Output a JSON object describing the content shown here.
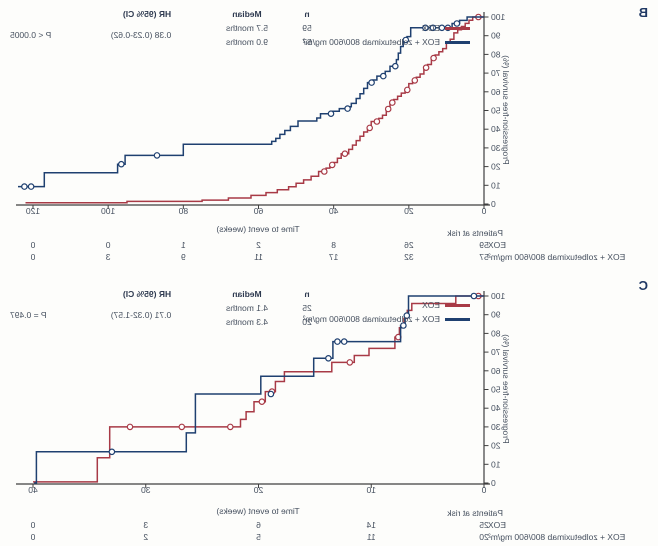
{
  "colors": {
    "eox": "#a83a46",
    "zolbetuximab": "#1f4070",
    "axis": "#3f3f3f",
    "text": "#46505f",
    "panel_letter": "#1f3864"
  },
  "panels": [
    {
      "label": "B",
      "y_axis_title": "Progression-free survival (%)",
      "x_axis_title": "Time to event (weeks)",
      "risk_title": "Patients at risk",
      "legend1": "EOX",
      "legend2": "EOX + zolbetuximab 800/600 mg/m²",
      "risk_row1_label": "EOX",
      "risk_row2_label": "EOX + zolbetuximab 800/600 mg/m²",
      "stats": {
        "n_header": "n",
        "median_header": "Median",
        "hr_header": "HR (95% CI)",
        "n1": "59",
        "median1": "5.7 months",
        "n2": "57",
        "median2": "9.0 months",
        "hr": "0.38 (0.23-0.62)",
        "p": "P < 0.0005"
      }
    },
    {
      "label": "C",
      "y_axis_title": "Progression-free survival (%)",
      "x_axis_title": "Time to event (weeks)",
      "risk_title": "Patients at risk",
      "legend1": "EOX",
      "legend2": "EOX + zolbetuximab 800/600 mg/m²",
      "risk_row1_label": "EOX",
      "risk_row2_label": "EOX + zolbetuximab 800/600 mg/m²",
      "stats": {
        "n_header": "n",
        "median_header": "Median",
        "hr_header": "HR (95% CI)",
        "n1": "25",
        "median1": "4.1 months",
        "n2": "20",
        "median2": "4.3 months",
        "hr": "0.71 (0.32-1.57)",
        "p": "P = 0.497"
      }
    }
  ],
  "chart_data": [
    {
      "type": "line",
      "subtype": "kaplan-meier-step",
      "title": "B",
      "xlabel": "Time to event (weeks)",
      "ylabel": "Progression-free survival (%)",
      "xlim": [
        0,
        124
      ],
      "ylim": [
        0,
        100
      ],
      "x_ticks": [
        0,
        20,
        40,
        60,
        80,
        100,
        120
      ],
      "y_ticks": [
        0,
        10,
        20,
        30,
        40,
        50,
        60,
        70,
        80,
        90,
        100
      ],
      "grid": false,
      "legend_position": "top-left-inside",
      "note": "image is horizontally mirrored",
      "series": [
        {
          "name": "EOX",
          "n": 59,
          "median": "5.7 months",
          "color": "#a83a46",
          "steps": [
            [
              0,
              100
            ],
            [
              3,
              98.3
            ],
            [
              4,
              96.6
            ],
            [
              5,
              94.9
            ],
            [
              6,
              93.2
            ],
            [
              7,
              91.5
            ],
            [
              8,
              88.1
            ],
            [
              9,
              86.4
            ],
            [
              10,
              83.1
            ],
            [
              11,
              81.4
            ],
            [
              12,
              79.7
            ],
            [
              13,
              78
            ],
            [
              14,
              74.6
            ],
            [
              15,
              72.9
            ],
            [
              16,
              69.5
            ],
            [
              17,
              67.8
            ],
            [
              18,
              66.1
            ],
            [
              19,
              64.4
            ],
            [
              20,
              61
            ],
            [
              21,
              59.3
            ],
            [
              22,
              57.6
            ],
            [
              23,
              55.9
            ],
            [
              24,
              54.2
            ],
            [
              25,
              50.8
            ],
            [
              26,
              47.5
            ],
            [
              27,
              45.8
            ],
            [
              28,
              44.1
            ],
            [
              30,
              40.7
            ],
            [
              31,
              38.5
            ],
            [
              32,
              36.2
            ],
            [
              33,
              33.9
            ],
            [
              34,
              31.5
            ],
            [
              35,
              29.2
            ],
            [
              36,
              26.9
            ],
            [
              38,
              24.5
            ],
            [
              39,
              22.2
            ],
            [
              40,
              20.9
            ],
            [
              41,
              19.2
            ],
            [
              42,
              17.4
            ],
            [
              44,
              14.8
            ],
            [
              46,
              12.9
            ],
            [
              48,
              11.1
            ],
            [
              50,
              9.2
            ],
            [
              52,
              7.6
            ],
            [
              55,
              6.1
            ],
            [
              58,
              4.6
            ],
            [
              62,
              3.2
            ],
            [
              68,
              2.1
            ],
            [
              75,
              1.4
            ],
            [
              95,
              0.7
            ],
            [
              122,
              0.7
            ]
          ],
          "censors": [
            [
              1.5,
              100
            ],
            [
              13.4,
              78
            ],
            [
              15.4,
              72.9
            ],
            [
              18.4,
              66.1
            ],
            [
              20.4,
              61
            ],
            [
              24.4,
              54.2
            ],
            [
              25.5,
              50.8
            ],
            [
              28.5,
              44.1
            ],
            [
              30.4,
              40.7
            ],
            [
              37,
              26.9
            ],
            [
              40.4,
              20.9
            ],
            [
              42.5,
              17.4
            ]
          ]
        },
        {
          "name": "EOX + zolbetuximab 800/600 mg/m²",
          "n": 57,
          "median": "9.0 months",
          "color": "#1f4070",
          "steps": [
            [
              0,
              100
            ],
            [
              4.5,
              98.2
            ],
            [
              6.5,
              96.5
            ],
            [
              8.5,
              94.2
            ],
            [
              19.5,
              89.5
            ],
            [
              20.5,
              87.7
            ],
            [
              21.5,
              84.2
            ],
            [
              22.2,
              80.7
            ],
            [
              22.8,
              77.2
            ],
            [
              23.3,
              73.7
            ],
            [
              25,
              70.9
            ],
            [
              26.3,
              68.4
            ],
            [
              28.5,
              66.3
            ],
            [
              29.6,
              64.9
            ],
            [
              31,
              61.8
            ],
            [
              32,
              59
            ],
            [
              33,
              56.4
            ],
            [
              34,
              53.8
            ],
            [
              35.3,
              52
            ],
            [
              36,
              51
            ],
            [
              38.5,
              49.6
            ],
            [
              40.3,
              48.3
            ],
            [
              43.5,
              46
            ],
            [
              44.5,
              44.4
            ],
            [
              49.5,
              41.5
            ],
            [
              51.5,
              39.3
            ],
            [
              53,
              37.2
            ],
            [
              54.3,
              35.1
            ],
            [
              55.4,
              33.5
            ],
            [
              56.5,
              31.9
            ],
            [
              80,
              26
            ],
            [
              95.5,
              21.3
            ],
            [
              97.5,
              16.7
            ],
            [
              117,
              9.3
            ],
            [
              124,
              9.3
            ]
          ],
          "censors": [
            [
              7.2,
              96.5
            ],
            [
              9.6,
              94.2
            ],
            [
              11.2,
              94.2
            ],
            [
              13.6,
              94.2
            ],
            [
              15.6,
              94.2
            ],
            [
              20.8,
              87.7
            ],
            [
              23.6,
              73.7
            ],
            [
              26.8,
              68.4
            ],
            [
              29.9,
              64.9
            ],
            [
              36.3,
              51
            ],
            [
              40.7,
              48.3
            ],
            [
              87,
              26
            ],
            [
              96.5,
              21.3
            ],
            [
              120.5,
              9.3
            ],
            [
              122.3,
              9.3
            ]
          ]
        }
      ],
      "hr": "0.38 (0.23-0.62)",
      "p_value": "P < 0.0005",
      "patients_at_risk": {
        "title": "Patients at risk",
        "times": [
          0,
          20,
          40,
          60,
          80,
          100,
          120
        ],
        "rows": [
          {
            "label": "EOX",
            "counts": [
              59,
              26,
              8,
              2,
              1,
              0,
              0
            ]
          },
          {
            "label": "EOX + zolbetuximab 800/600 mg/m²",
            "counts": [
              57,
              32,
              17,
              11,
              9,
              3,
              0
            ]
          }
        ]
      }
    },
    {
      "type": "line",
      "subtype": "kaplan-meier-step",
      "title": "C",
      "xlabel": "Time to event (weeks)",
      "ylabel": "Progression-free survival (%)",
      "xlim": [
        0,
        40
      ],
      "ylim": [
        0,
        100
      ],
      "x_ticks": [
        0,
        10,
        20,
        30,
        40
      ],
      "y_ticks": [
        0,
        10,
        20,
        30,
        40,
        50,
        60,
        70,
        80,
        90,
        100
      ],
      "grid": false,
      "legend_position": "top-left-inside",
      "note": "image is horizontally mirrored",
      "series": [
        {
          "name": "EOX",
          "n": 25,
          "median": "4.1 months",
          "color": "#a83a46",
          "steps": [
            [
              0,
              100
            ],
            [
              2.5,
              96
            ],
            [
              6.4,
              92.3
            ],
            [
              6.8,
              88
            ],
            [
              7.1,
              83
            ],
            [
              7.5,
              78
            ],
            [
              7.9,
              72
            ],
            [
              10.2,
              68.2
            ],
            [
              11.5,
              64.5
            ],
            [
              13.5,
              59.5
            ],
            [
              17.7,
              54.3
            ],
            [
              18.5,
              48.9
            ],
            [
              19.4,
              43.5
            ],
            [
              20.4,
              38.1
            ],
            [
              21.1,
              34
            ],
            [
              21.6,
              30
            ],
            [
              33.2,
              13.5
            ],
            [
              34.3,
              0.6
            ],
            [
              40,
              0.6
            ]
          ],
          "censors": [
            [
              0.5,
              100
            ],
            [
              7.6,
              78
            ],
            [
              11.9,
              64.5
            ],
            [
              18.8,
              48.9
            ],
            [
              19.7,
              43.5
            ],
            [
              22.5,
              30
            ],
            [
              26.8,
              30
            ],
            [
              31.4,
              30
            ]
          ]
        },
        {
          "name": "EOX + zolbetuximab 800/600 mg/m²",
          "n": 20,
          "median": "4.3 months",
          "color": "#1f4070",
          "steps": [
            [
              0,
              100
            ],
            [
              6.7,
              89.5
            ],
            [
              7,
              84.2
            ],
            [
              7.4,
              75.6
            ],
            [
              13.4,
              66.7
            ],
            [
              15.1,
              57.1
            ],
            [
              19.8,
              47.6
            ],
            [
              25.6,
              26.8
            ],
            [
              26.4,
              16.7
            ],
            [
              39.7,
              16.7
            ],
            [
              39.7,
              0
            ],
            [
              39.9,
              0
            ]
          ],
          "censors": [
            [
              0.9,
              100
            ],
            [
              6.85,
              89.5
            ],
            [
              7.15,
              84.2
            ],
            [
              12.4,
              75.6
            ],
            [
              13,
              75.6
            ],
            [
              13.8,
              66.7
            ],
            [
              18.9,
              47.6
            ],
            [
              33,
              16.7
            ]
          ]
        }
      ],
      "hr": "0.71 (0.32-1.57)",
      "p_value": "P = 0.497",
      "patients_at_risk": {
        "title": "Patients at risk",
        "times": [
          0,
          10,
          20,
          30,
          40
        ],
        "rows": [
          {
            "label": "EOX",
            "counts": [
              25,
              14,
              6,
              3,
              0
            ]
          },
          {
            "label": "EOX + zolbetuximab 800/600 mg/m²",
            "counts": [
              20,
              11,
              5,
              2,
              0
            ]
          }
        ]
      }
    }
  ]
}
